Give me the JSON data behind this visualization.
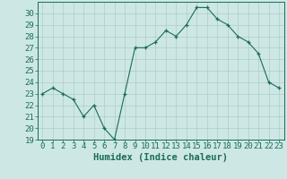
{
  "x": [
    0,
    1,
    2,
    3,
    4,
    5,
    6,
    7,
    8,
    9,
    10,
    11,
    12,
    13,
    14,
    15,
    16,
    17,
    18,
    19,
    20,
    21,
    22,
    23
  ],
  "y": [
    23,
    23.5,
    23,
    22.5,
    21,
    22,
    20,
    19,
    23,
    27,
    27,
    27.5,
    28.5,
    28,
    29,
    30.5,
    30.5,
    29.5,
    29,
    28,
    27.5,
    26.5,
    24,
    23.5
  ],
  "line_color": "#1a6b5a",
  "marker": "+",
  "marker_color": "#1a6b5a",
  "bg_color": "#cde8e4",
  "grid_color": "#b0ccc8",
  "tick_color": "#1a6b5a",
  "xlabel": "Humidex (Indice chaleur)",
  "xlim": [
    -0.5,
    23.5
  ],
  "ylim": [
    19,
    31
  ],
  "yticks": [
    19,
    20,
    21,
    22,
    23,
    24,
    25,
    26,
    27,
    28,
    29,
    30
  ],
  "xticks": [
    0,
    1,
    2,
    3,
    4,
    5,
    6,
    7,
    8,
    9,
    10,
    11,
    12,
    13,
    14,
    15,
    16,
    17,
    18,
    19,
    20,
    21,
    22,
    23
  ],
  "label_fontsize": 7.5,
  "tick_fontsize": 6.5
}
